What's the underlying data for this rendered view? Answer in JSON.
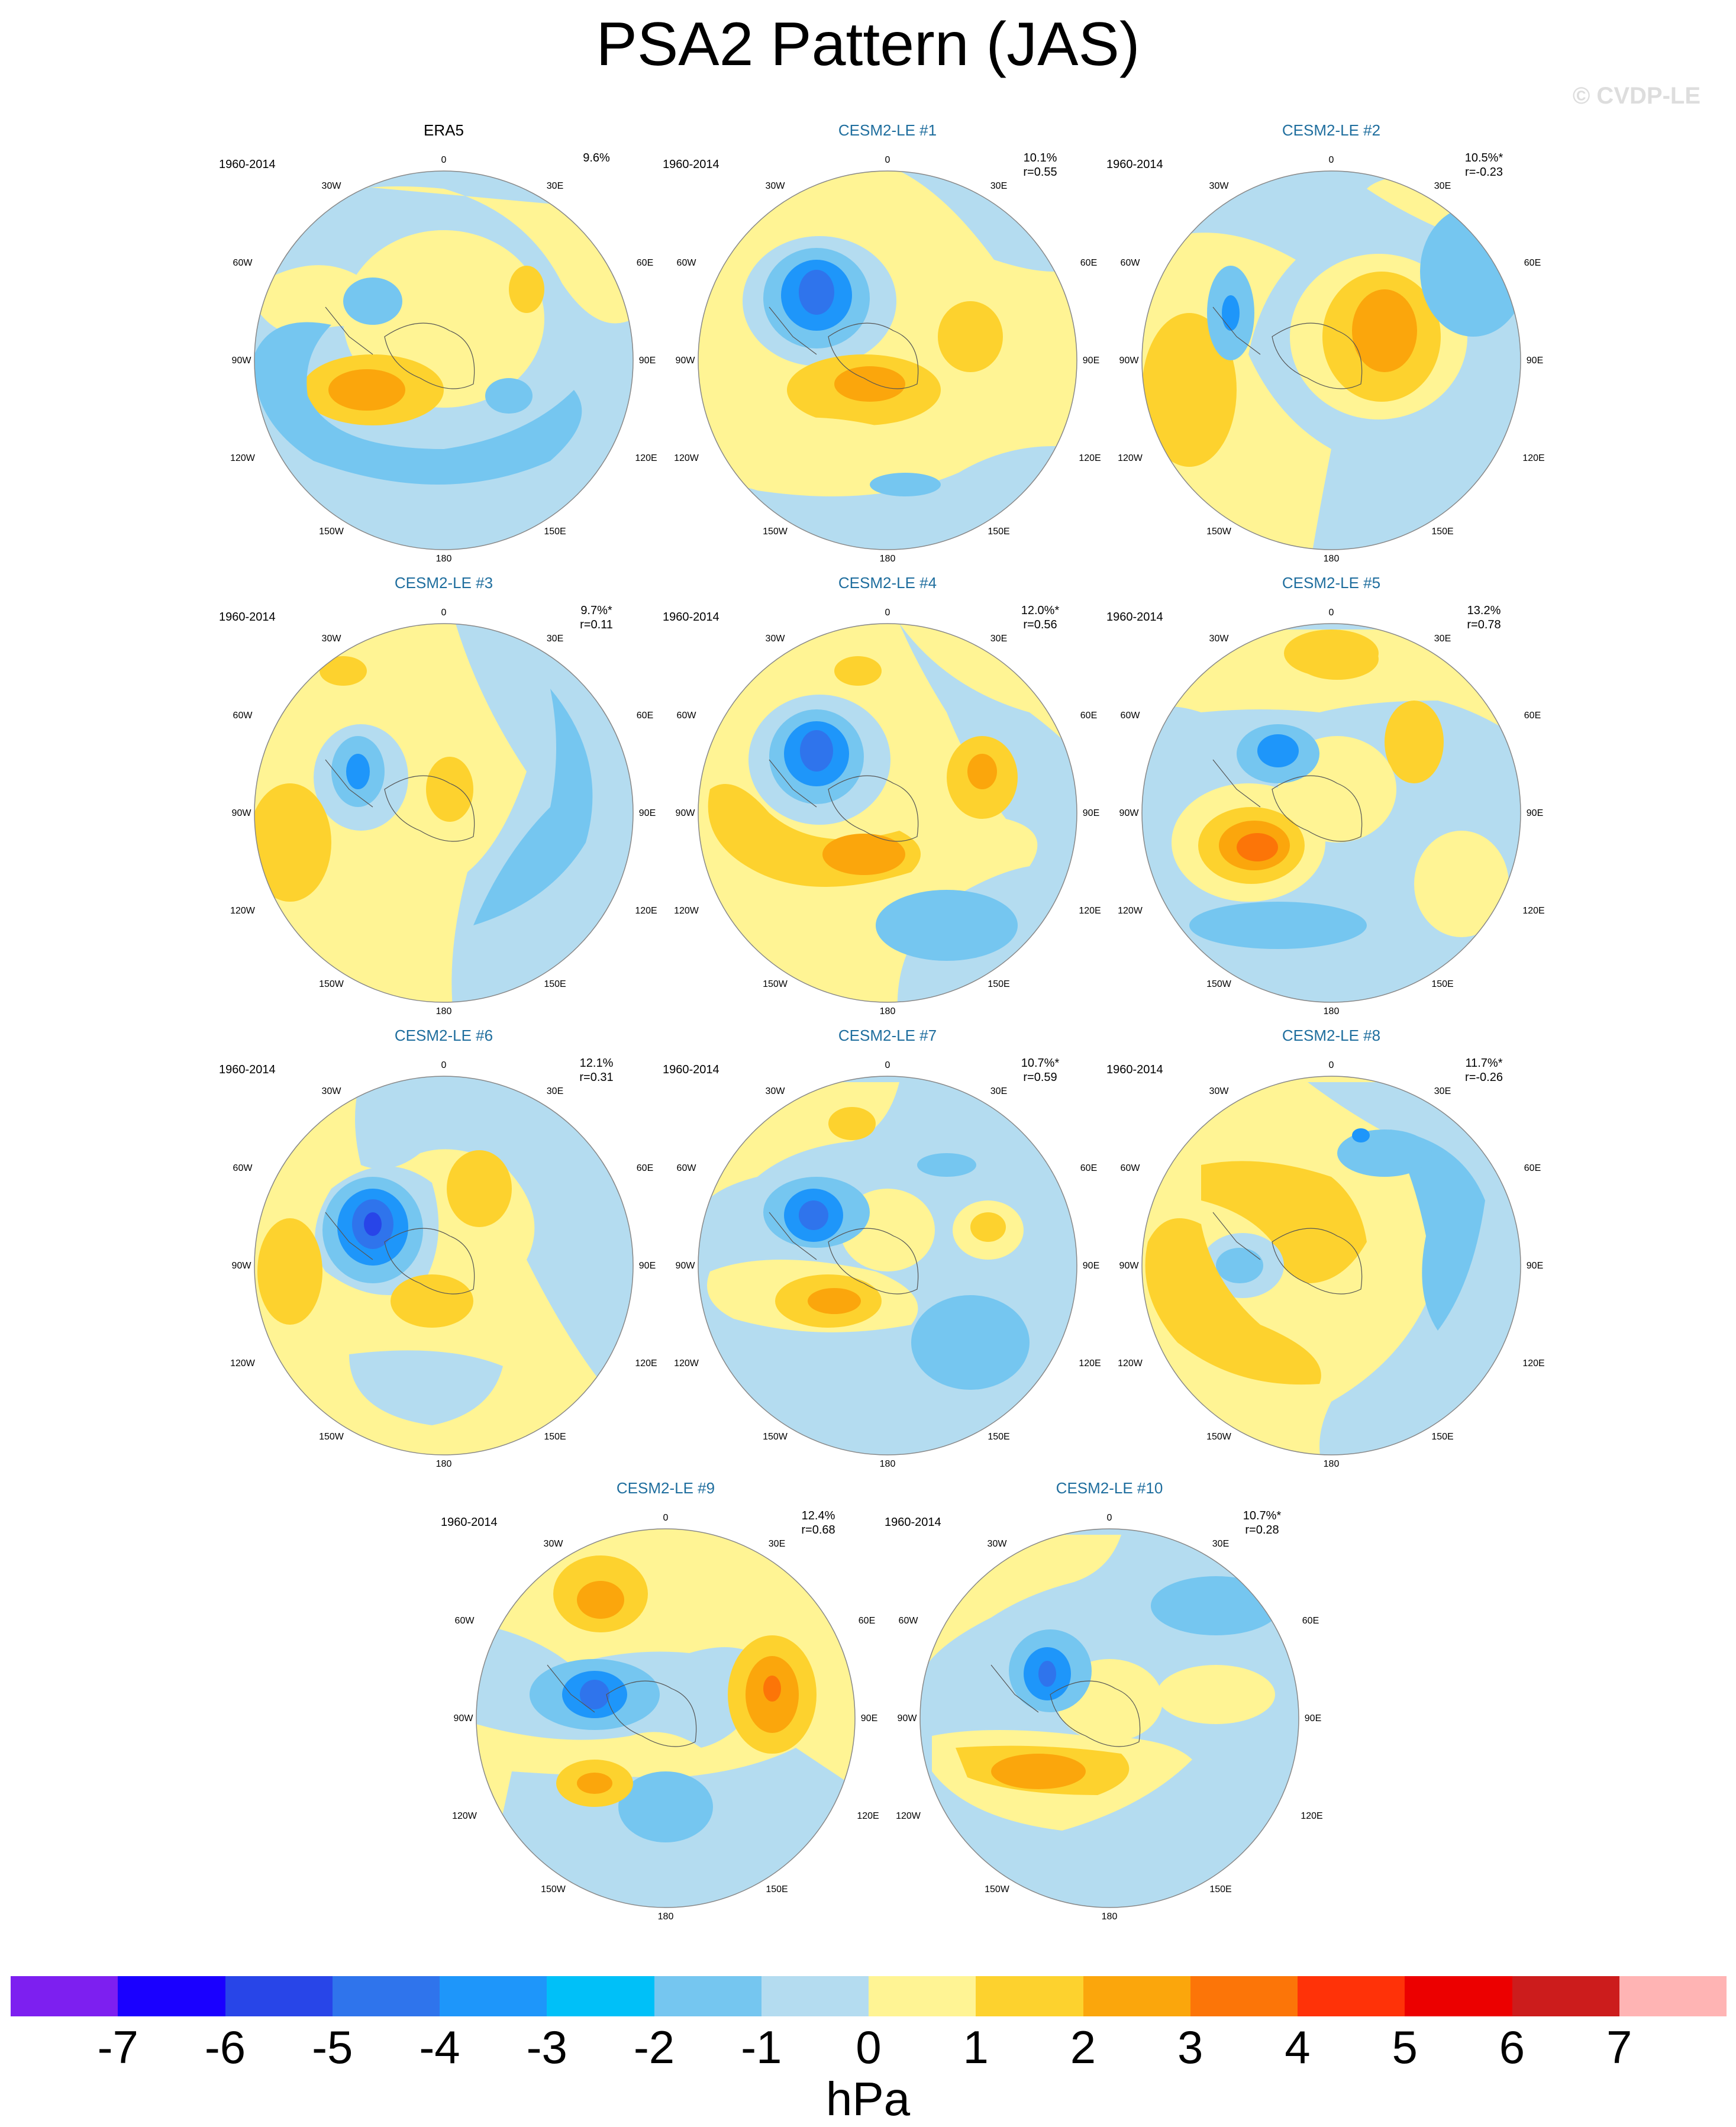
{
  "title": "PSA2 Pattern (JAS)",
  "watermark": "© CVDP-LE",
  "map_labels": {
    "years": "1960-2014",
    "lon_0": "0",
    "lon_30w": "30W",
    "lon_30e": "30E",
    "lon_60w": "60W",
    "lon_60e": "60E",
    "lon_90w": "90W",
    "lon_90e": "90E",
    "lon_120w": "120W",
    "lon_120e": "120E",
    "lon_150w": "150W",
    "lon_150e": "150E",
    "lon_180": "180"
  },
  "panels": [
    {
      "title": "ERA5",
      "pct": "9.6%",
      "r": ""
    },
    {
      "title": "CESM2-LE #1",
      "pct": "10.1%",
      "r": "r=0.55"
    },
    {
      "title": "CESM2-LE #2",
      "pct": "10.5%*",
      "r": "r=-0.23"
    },
    {
      "title": "CESM2-LE #3",
      "pct": "9.7%*",
      "r": "r=0.11"
    },
    {
      "title": "CESM2-LE #4",
      "pct": "12.0%*",
      "r": "r=0.56"
    },
    {
      "title": "CESM2-LE #5",
      "pct": "13.2%",
      "r": "r=0.78"
    },
    {
      "title": "CESM2-LE #6",
      "pct": "12.1%",
      "r": "r=0.31"
    },
    {
      "title": "CESM2-LE #7",
      "pct": "10.7%*",
      "r": "r=0.59"
    },
    {
      "title": "CESM2-LE #8",
      "pct": "11.7%*",
      "r": "r=-0.26"
    },
    {
      "title": "CESM2-LE #9",
      "pct": "12.4%",
      "r": "r=0.68"
    },
    {
      "title": "CESM2-LE #10",
      "pct": "10.7%*",
      "r": "r=0.28"
    }
  ],
  "colorbar": {
    "unit": "hPa",
    "ticks": [
      "-7",
      "-6",
      "-5",
      "-4",
      "-3",
      "-2",
      "-1",
      "0",
      "1",
      "2",
      "3",
      "4",
      "5",
      "6",
      "7"
    ],
    "colors": [
      "#7d1ff0",
      "#1a00ff",
      "#2845e8",
      "#2f74ec",
      "#1e96fa",
      "#00c0f8",
      "#75c6f0",
      "#b4dcf0",
      "#fff494",
      "#fdd22e",
      "#fba60c",
      "#fc7508",
      "#ff3208",
      "#ec0000",
      "#cc1c1c",
      "#ffb4b4"
    ]
  }
}
